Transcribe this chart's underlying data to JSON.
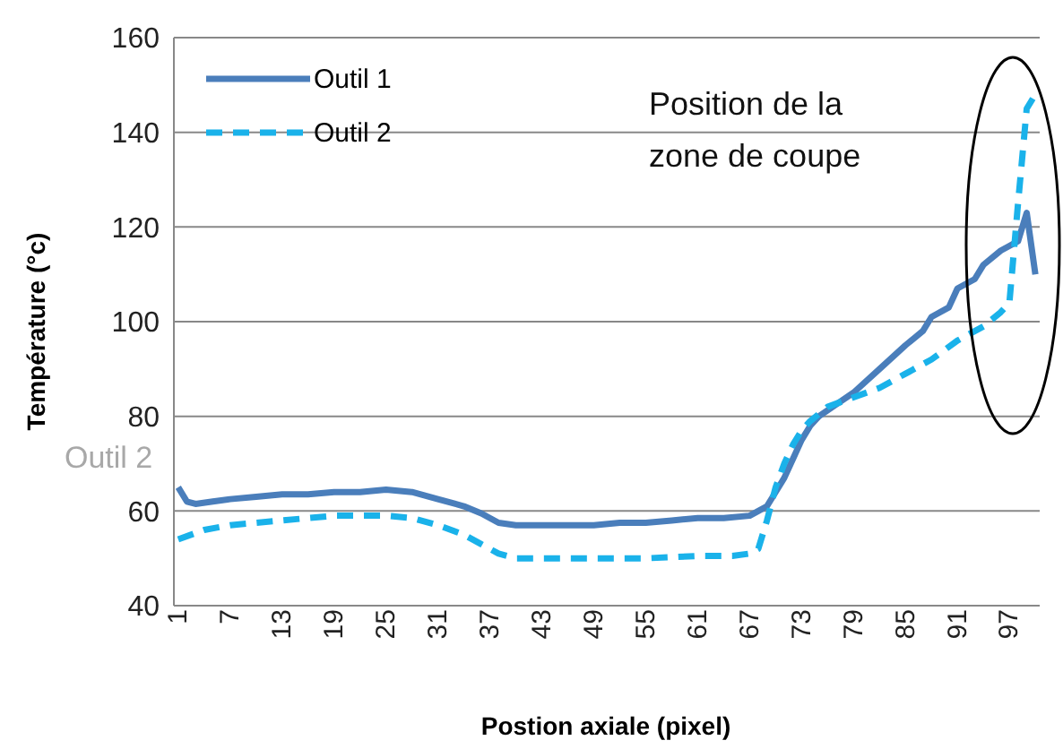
{
  "chart_data": {
    "type": "line",
    "xlabel": "Postion axiale (pixel)",
    "ylabel": "Température (°c)",
    "xlim": [
      0.5,
      100.5
    ],
    "xticks": [
      1,
      7,
      13,
      19,
      25,
      31,
      37,
      43,
      49,
      55,
      61,
      67,
      73,
      79,
      85,
      91,
      97
    ],
    "ylim": [
      40,
      160
    ],
    "yticks": [
      40,
      60,
      80,
      100,
      120,
      140,
      160
    ],
    "grid": "y",
    "legend": "top left",
    "annotations": [
      "Position de la zone de coupe",
      "Outil 2"
    ],
    "series": [
      {
        "name": "Outil 1",
        "color": "#4a7ebb",
        "line_style": "solid",
        "x": [
          1,
          2,
          3,
          5,
          7,
          10,
          13,
          16,
          19,
          22,
          25,
          28,
          31,
          34,
          36,
          38,
          40,
          43,
          46,
          49,
          52,
          55,
          58,
          61,
          64,
          67,
          68,
          69,
          70,
          71,
          72,
          73,
          74,
          75,
          77,
          79,
          82,
          85,
          87,
          88,
          90,
          91,
          93,
          94,
          96,
          97,
          98,
          99,
          100
        ],
        "values": [
          65,
          62,
          61.5,
          62,
          62.5,
          63,
          63.5,
          63.5,
          64,
          64,
          64.5,
          64,
          62.5,
          61,
          59.5,
          57.5,
          57,
          57,
          57,
          57,
          57.5,
          57.5,
          58,
          58.5,
          58.5,
          59,
          60,
          61,
          64,
          67,
          71,
          75,
          78,
          80,
          82.5,
          85,
          90,
          95,
          98,
          101,
          103,
          107,
          109,
          112,
          115,
          116,
          117,
          123,
          110
        ]
      },
      {
        "name": "Outil 2",
        "color": "#1ab2ea",
        "line_style": "dashed",
        "x": [
          1,
          4,
          7,
          10,
          13,
          16,
          19,
          22,
          25,
          28,
          31,
          34,
          36,
          38,
          40,
          43,
          49,
          55,
          61,
          65,
          67,
          68,
          69,
          70,
          71,
          72,
          73,
          74,
          76,
          79,
          82,
          85,
          88,
          91,
          94,
          96,
          97,
          98,
          99,
          100
        ],
        "values": [
          54,
          56,
          57,
          57.5,
          58,
          58.5,
          59,
          59,
          59,
          58.5,
          57,
          55,
          53,
          51,
          50,
          50,
          50,
          50,
          50.5,
          50.5,
          51,
          52,
          58,
          65,
          70,
          74,
          77,
          79,
          82,
          84,
          86,
          89,
          92,
          96,
          99,
          102,
          104,
          125,
          145,
          148
        ]
      }
    ]
  }
}
